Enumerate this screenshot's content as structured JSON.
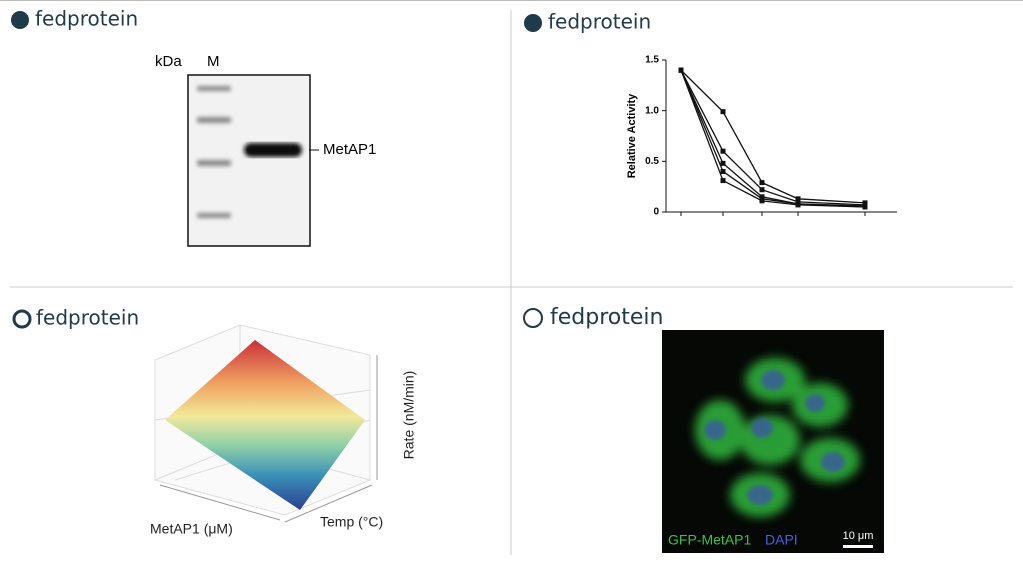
{
  "panels": [
    {
      "brand": "fedprotein",
      "gel": {
        "unit": "kDa",
        "marker_lane": "M",
        "band_label": "MetAP1"
      }
    },
    {
      "brand": "fedprotein"
    },
    {
      "brand": "fedprotein",
      "surface": {
        "x_label": "MetAP1 (μM)",
        "y_label": "Temp (°C)",
        "z_label": "Rate (nM/min)"
      }
    },
    {
      "brand": "fedprotein",
      "image": {
        "channels": [
          "GFP-MetAP1",
          "DAPI"
        ],
        "scale_bar": "10 μm"
      }
    }
  ],
  "chart_data": {
    "type": "line",
    "y_label": "Relative Activity",
    "categories": [
      null,
      null,
      null,
      null,
      null
    ],
    "series": [
      {
        "color": "#111111",
        "values": [
          1.4,
          0.99,
          0.29,
          0.13,
          0.09
        ]
      },
      {
        "color": "#111111",
        "values": [
          1.4,
          0.6,
          0.22,
          0.1,
          0.07
        ]
      },
      {
        "color": "#111111",
        "values": [
          1.4,
          0.48,
          0.15,
          0.08,
          0.06
        ]
      },
      {
        "color": "#111111",
        "values": [
          1.4,
          0.4,
          0.13,
          0.08,
          0.05
        ]
      },
      {
        "color": "#111111",
        "values": [
          1.4,
          0.31,
          0.11,
          0.07,
          0.05
        ]
      }
    ],
    "ylim": [
      0,
      1.5
    ],
    "yticks": [
      0,
      0.5,
      {
        "value": 1,
        "label": "1.0"
      },
      {
        "value": 1.5,
        "label": "1.5"
      }
    ]
  }
}
